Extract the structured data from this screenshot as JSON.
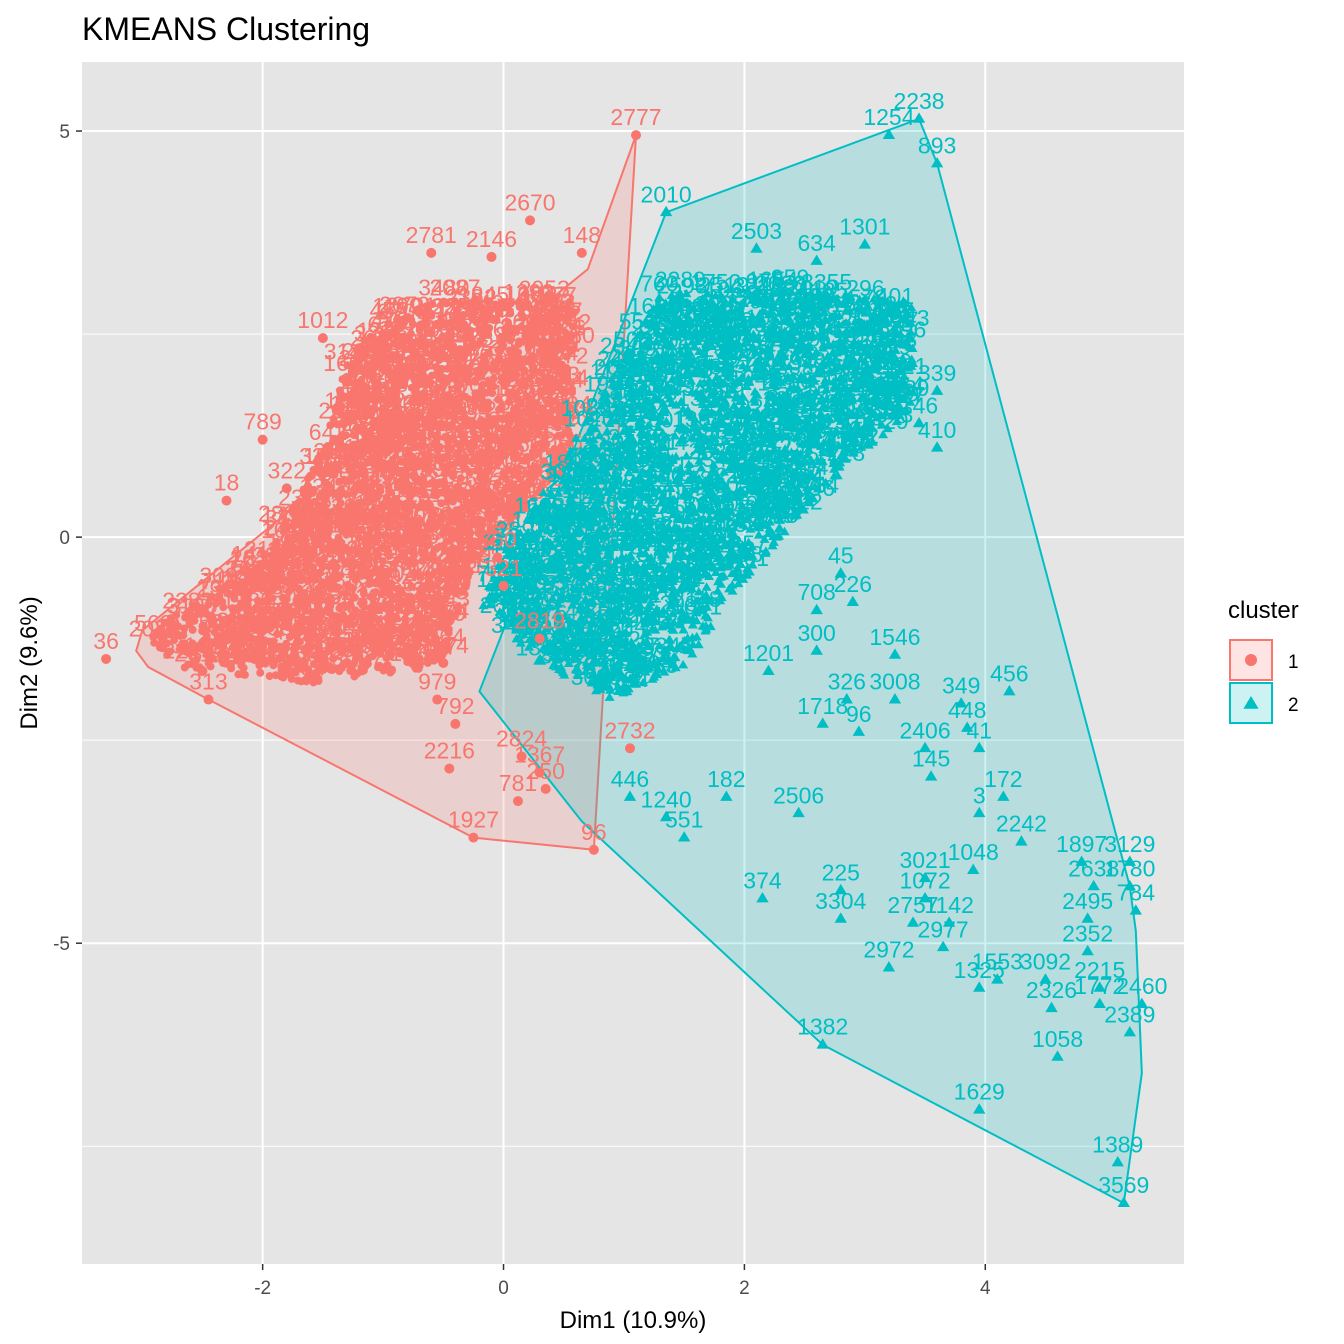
{
  "chart_data": {
    "type": "scatter",
    "title": "KMEANS Clustering",
    "xlabel": "Dim1 (10.9%)",
    "ylabel": "Dim2 (9.6%)",
    "xlim": [
      -3.5,
      5.65
    ],
    "ylim": [
      -8.95,
      5.85
    ],
    "xticks": [
      -2,
      0,
      2,
      4
    ],
    "xtick_labels": [
      "-2",
      "0",
      "2",
      "4"
    ],
    "yticks": [
      -5,
      0,
      5
    ],
    "ytick_labels": [
      "-5",
      "0",
      "5"
    ],
    "grid": true,
    "background": "#e5e5e5",
    "legend": {
      "title": "cluster",
      "position": "right",
      "entries": [
        {
          "label": "1",
          "color": "#f8766d",
          "shape": "circle"
        },
        {
          "label": "2",
          "color": "#00bfc4",
          "shape": "triangle"
        }
      ]
    },
    "series": [
      {
        "name": "1",
        "color": "#f8766d",
        "marker": "circle",
        "hull": [
          [
            1.1,
            4.95
          ],
          [
            0.75,
            -3.85
          ],
          [
            -0.25,
            -3.7
          ],
          [
            -2.45,
            -2.0
          ],
          [
            -2.95,
            -1.6
          ],
          [
            -3.05,
            -1.4
          ],
          [
            -3.0,
            -1.15
          ],
          [
            0.7,
            3.3
          ],
          [
            1.1,
            4.95
          ]
        ],
        "dense_region": [
          [
            -3.0,
            -1.2
          ],
          [
            -2.0,
            -0.3
          ],
          [
            -1.5,
            1.1
          ],
          [
            -1.25,
            2.4
          ],
          [
            -0.6,
            2.9
          ],
          [
            0.6,
            2.95
          ],
          [
            0.55,
            0.9
          ],
          [
            -0.25,
            -0.3
          ],
          [
            -0.5,
            -1.6
          ],
          [
            -1.6,
            -1.8
          ],
          [
            -2.7,
            -1.6
          ]
        ],
        "points": [
          {
            "x": 1.1,
            "y": 4.95,
            "label": "2777"
          },
          {
            "x": 0.22,
            "y": 3.9,
            "label": "2670"
          },
          {
            "x": -0.6,
            "y": 3.5,
            "label": "2781"
          },
          {
            "x": -0.1,
            "y": 3.45,
            "label": "2146"
          },
          {
            "x": 0.65,
            "y": 3.5,
            "label": "148"
          },
          {
            "x": -1.5,
            "y": 2.45,
            "label": "1012"
          },
          {
            "x": -2.0,
            "y": 1.2,
            "label": "789"
          },
          {
            "x": -1.8,
            "y": 0.6,
            "label": "322"
          },
          {
            "x": -2.3,
            "y": 0.45,
            "label": "18"
          },
          {
            "x": -3.3,
            "y": -1.5,
            "label": "36"
          },
          {
            "x": -2.5,
            "y": -1.65,
            "label": "31"
          },
          {
            "x": -2.45,
            "y": -2.0,
            "label": "313"
          },
          {
            "x": -0.55,
            "y": -2.0,
            "label": "979"
          },
          {
            "x": -0.4,
            "y": -2.3,
            "label": "792"
          },
          {
            "x": -0.45,
            "y": -2.85,
            "label": "2216"
          },
          {
            "x": 0.15,
            "y": -2.7,
            "label": "2824"
          },
          {
            "x": 0.3,
            "y": -2.9,
            "label": "1367"
          },
          {
            "x": 0.35,
            "y": -3.1,
            "label": "250"
          },
          {
            "x": 0.12,
            "y": -3.25,
            "label": "781"
          },
          {
            "x": -0.25,
            "y": -3.7,
            "label": "1927"
          },
          {
            "x": 0.75,
            "y": -3.85,
            "label": "96"
          },
          {
            "x": 1.05,
            "y": -2.6,
            "label": "2732"
          },
          {
            "x": 0.3,
            "y": -1.25,
            "label": "2819"
          },
          {
            "x": -0.05,
            "y": -0.25,
            "label": "360"
          },
          {
            "x": 0.0,
            "y": -0.6,
            "label": "321"
          },
          {
            "x": -1.45,
            "y": -1.6,
            "label": "2066"
          },
          {
            "x": -1.3,
            "y": -1.55,
            "label": "1006"
          },
          {
            "x": -0.5,
            "y": -1.55,
            "label": "2574"
          }
        ]
      },
      {
        "name": "2",
        "color": "#00bfc4",
        "marker": "triangle",
        "hull": [
          [
            3.45,
            5.15
          ],
          [
            3.6,
            4.6
          ],
          [
            5.2,
            -4.3
          ],
          [
            5.25,
            -4.85
          ],
          [
            5.3,
            -6.6
          ],
          [
            5.15,
            -8.2
          ],
          [
            2.65,
            -6.25
          ],
          [
            0.65,
            -3.5
          ],
          [
            -0.2,
            -1.9
          ],
          [
            1.35,
            4.0
          ],
          [
            3.45,
            5.15
          ]
        ],
        "dense_region": [
          [
            0.0,
            -0.2
          ],
          [
            0.8,
            1.7
          ],
          [
            1.3,
            3.0
          ],
          [
            2.5,
            3.05
          ],
          [
            3.4,
            2.9
          ],
          [
            3.4,
            1.6
          ],
          [
            2.6,
            0.5
          ],
          [
            1.9,
            -0.7
          ],
          [
            1.5,
            -1.6
          ],
          [
            0.9,
            -2.0
          ],
          [
            0.3,
            -1.6
          ],
          [
            -0.2,
            -0.8
          ]
        ],
        "points": [
          {
            "x": 3.45,
            "y": 5.15,
            "label": "2238"
          },
          {
            "x": 3.2,
            "y": 4.95,
            "label": "1254"
          },
          {
            "x": 3.6,
            "y": 4.6,
            "label": "893"
          },
          {
            "x": 1.35,
            "y": 4.0,
            "label": "2010"
          },
          {
            "x": 2.1,
            "y": 3.55,
            "label": "2503"
          },
          {
            "x": 3.0,
            "y": 3.6,
            "label": "1301"
          },
          {
            "x": 2.6,
            "y": 3.4,
            "label": "634"
          },
          {
            "x": 3.25,
            "y": 2.75,
            "label": "401"
          },
          {
            "x": 3.6,
            "y": 1.8,
            "label": "339"
          },
          {
            "x": 3.45,
            "y": 1.4,
            "label": "146"
          },
          {
            "x": 3.6,
            "y": 1.1,
            "label": "410"
          },
          {
            "x": 2.8,
            "y": -0.45,
            "label": "45"
          },
          {
            "x": 2.9,
            "y": -0.8,
            "label": "226"
          },
          {
            "x": 2.6,
            "y": -0.9,
            "label": "708"
          },
          {
            "x": 3.25,
            "y": -1.45,
            "label": "1546"
          },
          {
            "x": 2.85,
            "y": -2.0,
            "label": "326"
          },
          {
            "x": 3.25,
            "y": -2.0,
            "label": "3008"
          },
          {
            "x": 4.2,
            "y": -1.9,
            "label": "456"
          },
          {
            "x": 3.8,
            "y": -2.05,
            "label": "349"
          },
          {
            "x": 3.85,
            "y": -2.35,
            "label": "448"
          },
          {
            "x": 3.95,
            "y": -2.6,
            "label": "41"
          },
          {
            "x": 3.5,
            "y": -2.6,
            "label": "2406"
          },
          {
            "x": 3.55,
            "y": -2.95,
            "label": "145"
          },
          {
            "x": 4.15,
            "y": -3.2,
            "label": "172"
          },
          {
            "x": 3.95,
            "y": -3.4,
            "label": "3"
          },
          {
            "x": 4.3,
            "y": -3.75,
            "label": "2242"
          },
          {
            "x": 3.9,
            "y": -4.1,
            "label": "1048"
          },
          {
            "x": 4.8,
            "y": -4.0,
            "label": "1897"
          },
          {
            "x": 5.2,
            "y": -4.0,
            "label": "3129"
          },
          {
            "x": 4.9,
            "y": -4.3,
            "label": "2638"
          },
          {
            "x": 5.2,
            "y": -4.3,
            "label": "1780"
          },
          {
            "x": 5.25,
            "y": -4.6,
            "label": "784"
          },
          {
            "x": 4.85,
            "y": -4.7,
            "label": "2495"
          },
          {
            "x": 4.85,
            "y": -5.1,
            "label": "2352"
          },
          {
            "x": 4.5,
            "y": -5.45,
            "label": "3092"
          },
          {
            "x": 4.1,
            "y": -5.45,
            "label": "1553"
          },
          {
            "x": 4.95,
            "y": -5.55,
            "label": "2215"
          },
          {
            "x": 4.95,
            "y": -5.75,
            "label": "1772"
          },
          {
            "x": 5.3,
            "y": -5.75,
            "label": "2460"
          },
          {
            "x": 4.55,
            "y": -5.8,
            "label": "2326"
          },
          {
            "x": 5.2,
            "y": -6.1,
            "label": "2389"
          },
          {
            "x": 3.95,
            "y": -5.55,
            "label": "1325"
          },
          {
            "x": 4.6,
            "y": -6.4,
            "label": "1058"
          },
          {
            "x": 3.95,
            "y": -7.05,
            "label": "1629"
          },
          {
            "x": 5.1,
            "y": -7.7,
            "label": "1389"
          },
          {
            "x": 5.15,
            "y": -8.2,
            "label": "3569"
          },
          {
            "x": 2.65,
            "y": -6.25,
            "label": "1382"
          },
          {
            "x": 3.2,
            "y": -5.3,
            "label": "2972"
          },
          {
            "x": 3.65,
            "y": -5.05,
            "label": "2977"
          },
          {
            "x": 3.7,
            "y": -4.75,
            "label": "1142"
          },
          {
            "x": 3.4,
            "y": -4.75,
            "label": "2757"
          },
          {
            "x": 3.5,
            "y": -4.45,
            "label": "1072"
          },
          {
            "x": 2.8,
            "y": -4.7,
            "label": "3304"
          },
          {
            "x": 2.8,
            "y": -4.35,
            "label": "225"
          },
          {
            "x": 3.5,
            "y": -4.2,
            "label": "3021"
          },
          {
            "x": 2.15,
            "y": -4.45,
            "label": "374"
          },
          {
            "x": 1.5,
            "y": -3.7,
            "label": "551"
          },
          {
            "x": 1.35,
            "y": -3.45,
            "label": "1240"
          },
          {
            "x": 1.05,
            "y": -3.2,
            "label": "446"
          },
          {
            "x": 1.85,
            "y": -3.2,
            "label": "182"
          },
          {
            "x": 2.45,
            "y": -3.4,
            "label": "2506"
          },
          {
            "x": 2.6,
            "y": -1.4,
            "label": "300"
          },
          {
            "x": 2.2,
            "y": -1.65,
            "label": "1201"
          },
          {
            "x": 2.65,
            "y": -2.3,
            "label": "1718"
          },
          {
            "x": 2.95,
            "y": -2.4,
            "label": "96"
          }
        ]
      }
    ]
  }
}
